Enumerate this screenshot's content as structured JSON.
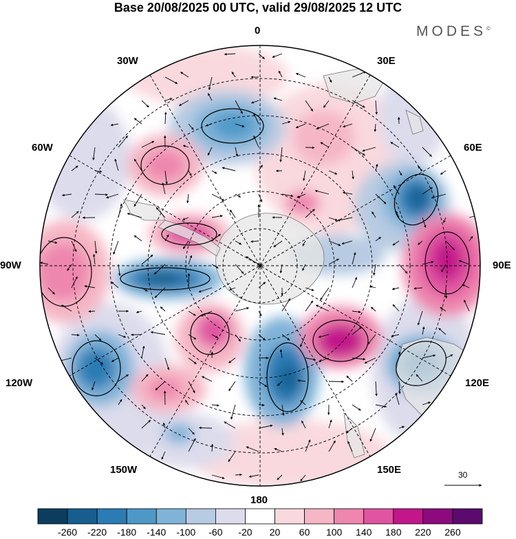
{
  "title": "Base 20/08/2025 00 UTC, valid 29/08/2025 12 UTC",
  "brand": "MODES",
  "brand_mark": "©",
  "longitude_labels": {
    "top": "0",
    "top_left": "30W",
    "top_right": "30E",
    "upper_left": "60W",
    "upper_right": "60E",
    "left": "90W",
    "right": "90E",
    "lower_left": "120W",
    "lower_right": "120E",
    "bottom_left": "150W",
    "bottom_right": "150E",
    "bottom": "180"
  },
  "vector_scale": {
    "value": "30"
  },
  "colorbar": {
    "labels": [
      "-260",
      "-220",
      "-180",
      "-140",
      "-100",
      "-60",
      "-20",
      "20",
      "60",
      "100",
      "140",
      "180",
      "220",
      "260"
    ],
    "colors": [
      "#0b3d5e",
      "#175e8f",
      "#2b7bb4",
      "#4e98c8",
      "#80b3d8",
      "#b7cbe2",
      "#dcdcec",
      "#ffffff",
      "#f9d9de",
      "#f5b6c5",
      "#ee86ae",
      "#e054a0",
      "#c2168a",
      "#8c0a7e",
      "#5b0a6e"
    ]
  },
  "map_colors": {
    "land": "#e6e6e6",
    "coast": "#777777",
    "grid": "#000000"
  }
}
